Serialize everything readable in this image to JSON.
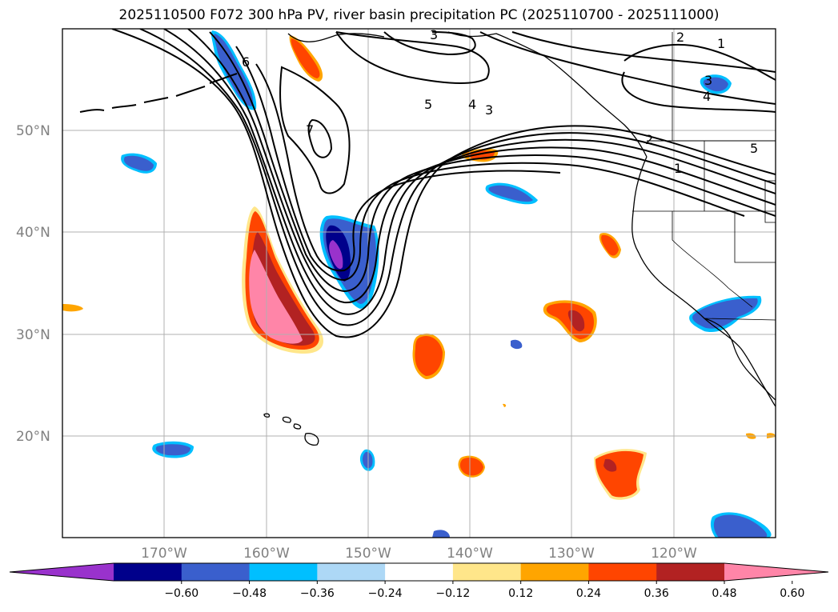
{
  "title": "2025110500 F072 300 hPa PV, river basin precipitation PC (2025110700 - 2025111000)",
  "map": {
    "latitude_labels": [
      "50°N",
      "40°N",
      "30°N",
      "20°N"
    ],
    "longitude_labels": [
      "170°W",
      "160°W",
      "150°W",
      "140°W",
      "130°W",
      "120°W"
    ],
    "gridlines": true,
    "coastline_color": "#000000",
    "contour_field": "300 hPa PV",
    "contour_labels": [
      "6",
      "7",
      "5",
      "4",
      "3",
      "3",
      "2",
      "1",
      "3",
      "4",
      "5",
      "1",
      "2"
    ]
  },
  "colorbar": {
    "orientation": "horizontal",
    "extend": "both",
    "ticks": [
      "−0.60",
      "−0.48",
      "−0.36",
      "−0.24",
      "−0.12",
      "0.12",
      "0.24",
      "0.36",
      "0.48",
      "0.60"
    ],
    "colors": [
      "#9932cc",
      "#00008b",
      "#3a5fcd",
      "#00bfff",
      "#add8f6",
      "#ffffff",
      "#ffe68a",
      "#ffa500",
      "#ff4500",
      "#b22222",
      "#ff85a8"
    ]
  }
}
